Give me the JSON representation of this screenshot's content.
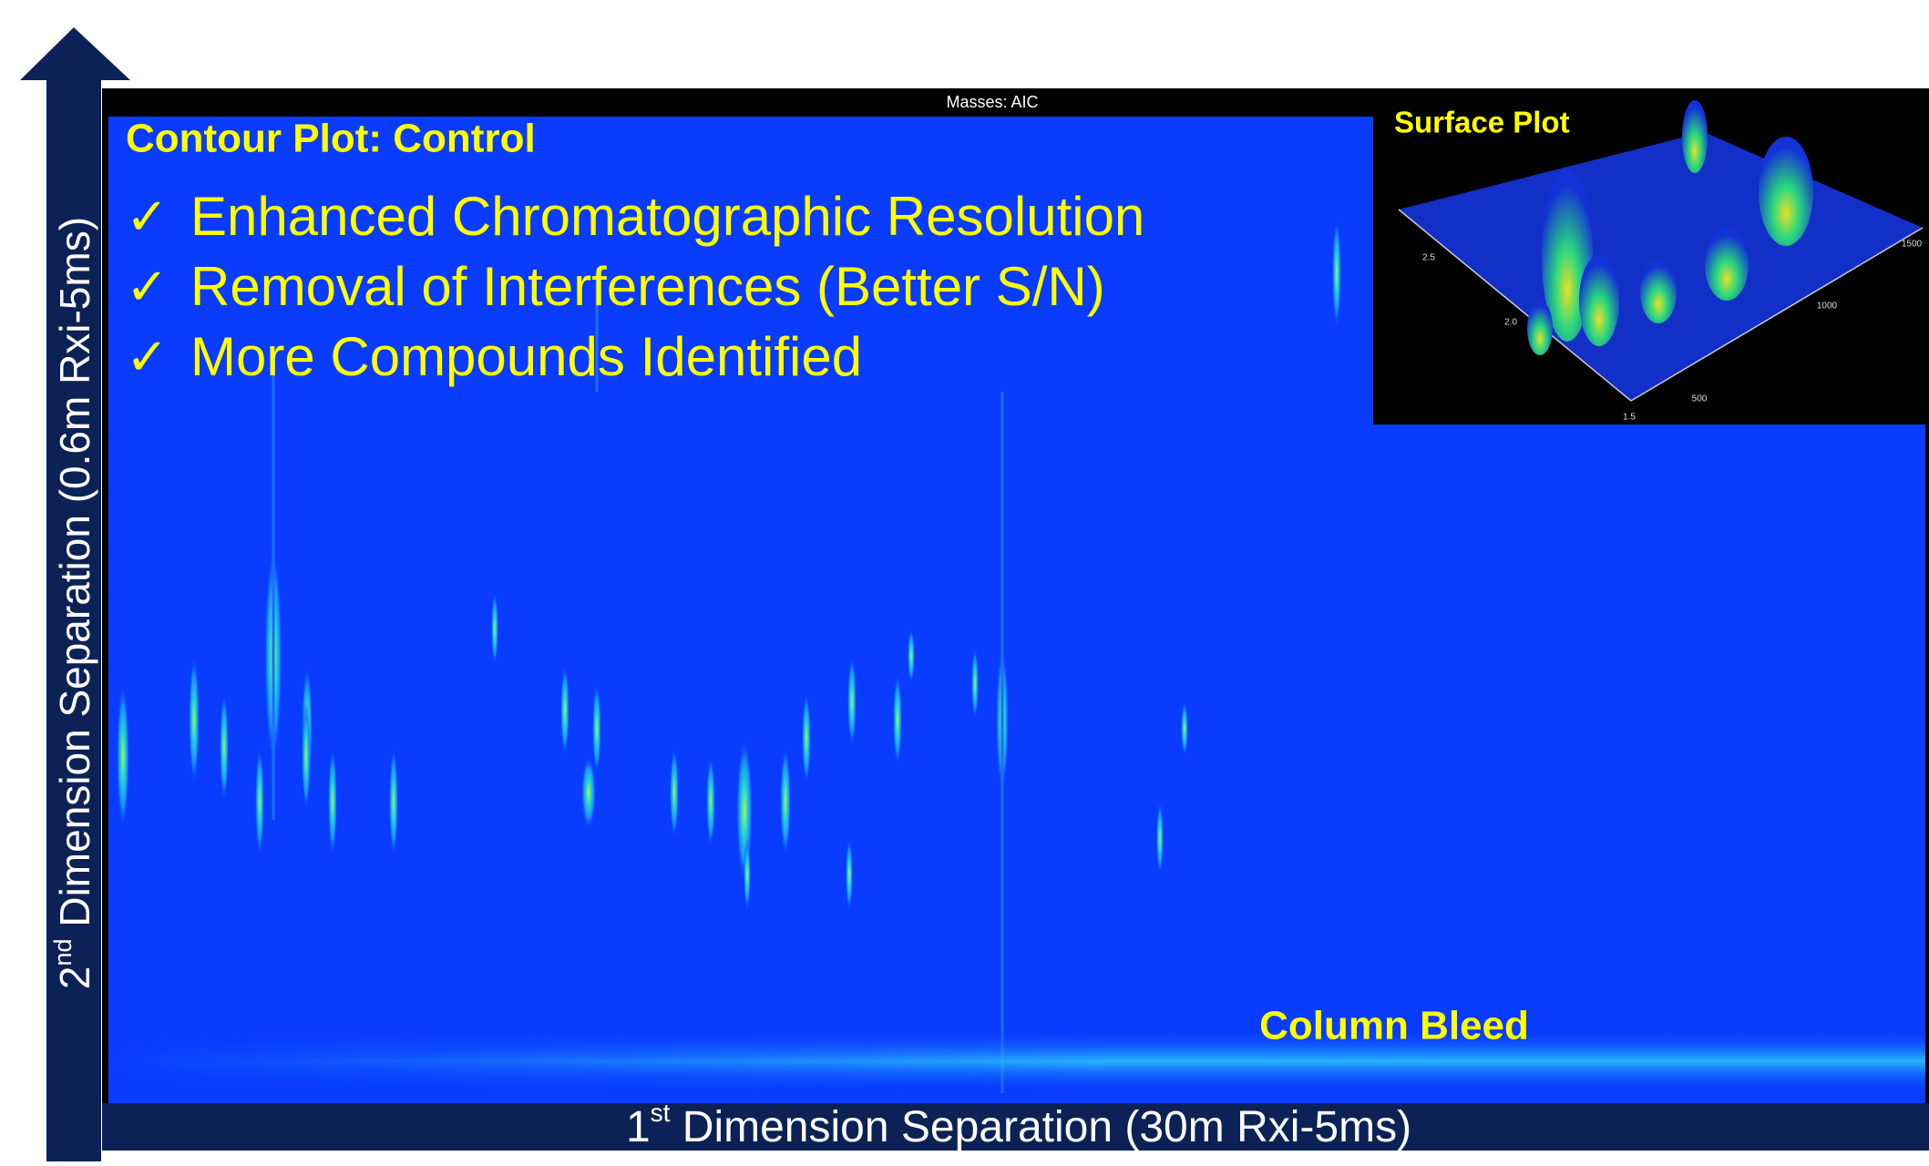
{
  "header": {
    "masses": "Masses: AIC",
    "title": "Contour Plot:  Control"
  },
  "bullets": [
    {
      "mark": "✓",
      "text": "Enhanced Chromatographic Resolution"
    },
    {
      "mark": "✓",
      "text": "Removal of Interferences (Better S/N)"
    },
    {
      "mark": "✓",
      "text": "More Compounds Identified"
    }
  ],
  "surface_plot": {
    "title": "Surface Plot",
    "tick_labels": [
      "2.5",
      "2.0",
      "1.5",
      "500",
      "1000",
      "1500"
    ]
  },
  "annotation": "Column Bleed",
  "y_axis": {
    "prefix": "2",
    "superscript": "nd",
    "text": " Dimension Separation (0.6m Rxi-5ms)"
  },
  "x_axis": {
    "prefix": "1",
    "superscript": "st",
    "text": " Dimension Separation (30m Rxi-5ms)"
  }
}
